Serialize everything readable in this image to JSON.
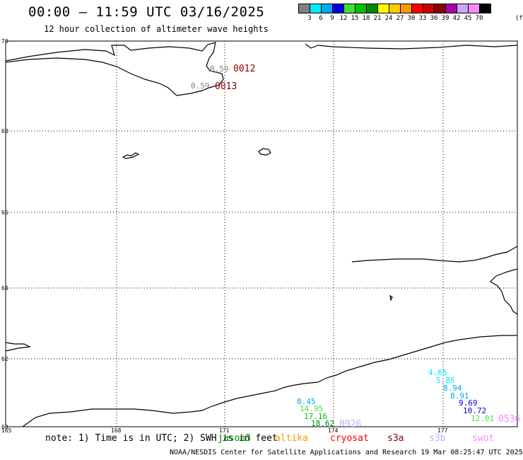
{
  "header": {
    "title": "00:00 – 11:59 UTC 03/16/2025",
    "subtitle": "12 hour collection of altimeter wave heights"
  },
  "legend": {
    "unit": "(ft)",
    "bins": [
      {
        "label": "3",
        "color": "#808080"
      },
      {
        "label": "6",
        "color": "#00e8ff"
      },
      {
        "label": "9",
        "color": "#00a8f0"
      },
      {
        "label": "12",
        "color": "#0000e0"
      },
      {
        "label": "15",
        "color": "#40e040"
      },
      {
        "label": "18",
        "color": "#00c000"
      },
      {
        "label": "21",
        "color": "#008800"
      },
      {
        "label": "24",
        "color": "#ffff00"
      },
      {
        "label": "27",
        "color": "#ffcc00"
      },
      {
        "label": "30",
        "color": "#ff9900"
      },
      {
        "label": "33",
        "color": "#ff0000"
      },
      {
        "label": "36",
        "color": "#cc0000"
      },
      {
        "label": "39",
        "color": "#880000"
      },
      {
        "label": "42",
        "color": "#aa00aa"
      },
      {
        "label": "45",
        "color": "#c8a8ff"
      },
      {
        "label": "70",
        "color": "#ff88ff"
      },
      {
        "label": "",
        "color": "#000000"
      }
    ]
  },
  "map": {
    "lat_labels": [
      "70",
      "68",
      "66",
      "64",
      "62",
      "60"
    ],
    "lon_labels": [
      "165",
      "168",
      "171",
      "174",
      "177"
    ],
    "observations": [
      {
        "label": "0.59",
        "color": "#808080"
      },
      {
        "label": "0012",
        "color": "#880000"
      },
      {
        "label": "0.59",
        "color": "#808080"
      },
      {
        "label": "0013",
        "color": "#880000"
      },
      {
        "label": "8.45",
        "color": "#00a8f0"
      },
      {
        "label": "14.95",
        "color": "#40e040"
      },
      {
        "label": "17.16",
        "color": "#00c000"
      },
      {
        "label": "18.62",
        "color": "#008800"
      },
      {
        "label": "0926",
        "color": "#c8a8ff"
      },
      {
        "label": "4.66",
        "color": "#00e8ff"
      },
      {
        "label": "5.86",
        "color": "#00e8ff"
      },
      {
        "label": "8.94",
        "color": "#00a8f0"
      },
      {
        "label": "8.91",
        "color": "#00a8f0"
      },
      {
        "label": "9.69",
        "color": "#0000e0"
      },
      {
        "label": "10.72",
        "color": "#0000e0"
      },
      {
        "label": "12.01",
        "color": "#40e040"
      },
      {
        "label": "0536",
        "color": "#ff88ff"
      }
    ]
  },
  "footer": {
    "note": "note: 1) Time is in UTC; 2) SWH is in feet",
    "satellites": [
      {
        "label": "jason3",
        "color": "#008800"
      },
      {
        "label": "altika",
        "color": "#ff9900"
      },
      {
        "label": "cryosat",
        "color": "#ff0000"
      },
      {
        "label": "s3a",
        "color": "#880000"
      },
      {
        "label": "s3b",
        "color": "#c8a8ff"
      },
      {
        "label": "swot",
        "color": "#ff88ff"
      }
    ],
    "credit": "NOAA/NESDIS Center for Satellite Applications and Research   19 Mar 08:25:47 UTC 2025"
  }
}
